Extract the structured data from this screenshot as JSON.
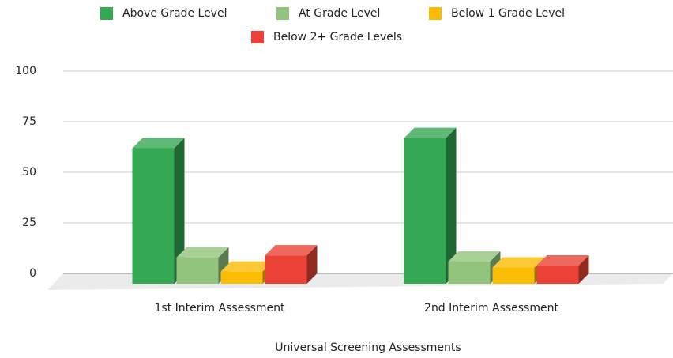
{
  "chart_data": {
    "type": "bar3d",
    "x_label": "Universal Screening Assessments",
    "categories": [
      "1st Interim Assessment",
      "2nd Interim Assessment"
    ],
    "series": [
      {
        "name": "Above Grade Level",
        "color": "#34a853",
        "values": [
          67,
          72
        ]
      },
      {
        "name": "At Grade Level",
        "color": "#93c47d",
        "values": [
          13,
          11
        ]
      },
      {
        "name": "Below 1 Grade Level",
        "color": "#fbbc04",
        "values": [
          6,
          8
        ]
      },
      {
        "name": "Below 2+ Grade Levels",
        "color": "#ea4335",
        "values": [
          14,
          9
        ]
      }
    ],
    "ylim": [
      0,
      100
    ],
    "yticks": [
      0,
      25,
      50,
      75,
      100
    ],
    "grid": true,
    "legend": "top"
  }
}
